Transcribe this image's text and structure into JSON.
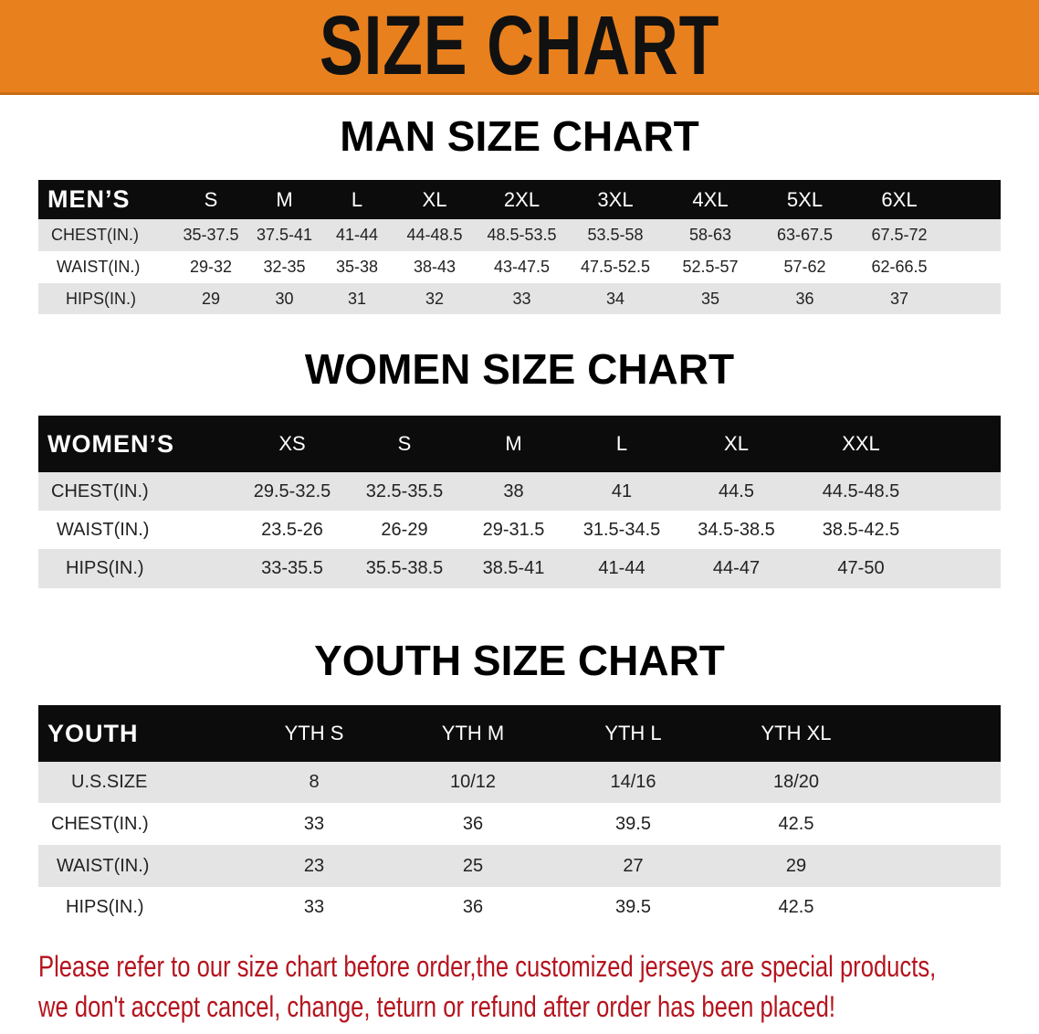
{
  "banner": {
    "title": "SIZE CHART",
    "color": "#e8801d"
  },
  "men": {
    "title": "MAN SIZE CHART",
    "header": "MEN’S",
    "sizes": [
      "S",
      "M",
      "L",
      "XL",
      "2XL",
      "3XL",
      "4XL",
      "5XL",
      "6XL"
    ],
    "rows": [
      {
        "label": "CHEST(IN.)",
        "values": [
          "35-37.5",
          "37.5-41",
          "41-44",
          "44-48.5",
          "48.5-53.5",
          "53.5-58",
          "58-63",
          "63-67.5",
          "67.5-72"
        ]
      },
      {
        "label": "WAIST(IN.)",
        "values": [
          "29-32",
          "32-35",
          "35-38",
          "38-43",
          "43-47.5",
          "47.5-52.5",
          "52.5-57",
          "57-62",
          "62-66.5"
        ]
      },
      {
        "label": "HIPS(IN.)",
        "values": [
          "29",
          "30",
          "31",
          "32",
          "33",
          "34",
          "35",
          "36",
          "37"
        ]
      }
    ]
  },
  "women": {
    "title": "WOMEN SIZE CHART",
    "header": "WOMEN’S",
    "sizes": [
      "XS",
      "S",
      "M",
      "L",
      "XL",
      "XXL"
    ],
    "rows": [
      {
        "label": "CHEST(IN.)",
        "values": [
          "29.5-32.5",
          "32.5-35.5",
          "38",
          "41",
          "44.5",
          "44.5-48.5"
        ]
      },
      {
        "label": "WAIST(IN.)",
        "values": [
          "23.5-26",
          "26-29",
          "29-31.5",
          "31.5-34.5",
          "34.5-38.5",
          "38.5-42.5"
        ]
      },
      {
        "label": "HIPS(IN.)",
        "values": [
          "33-35.5",
          "35.5-38.5",
          "38.5-41",
          "41-44",
          "44-47",
          "47-50"
        ]
      }
    ]
  },
  "youth": {
    "title": "YOUTH SIZE CHART",
    "header": "YOUTH",
    "sizes": [
      "YTH S",
      "YTH M",
      "YTH L",
      "YTH XL"
    ],
    "rows": [
      {
        "label": "U.S.SIZE",
        "values": [
          "8",
          "10/12",
          "14/16",
          "18/20"
        ]
      },
      {
        "label": "CHEST(IN.)",
        "values": [
          "33",
          "36",
          "39.5",
          "42.5"
        ]
      },
      {
        "label": "WAIST(IN.)",
        "values": [
          "23",
          "25",
          "27",
          "29"
        ]
      },
      {
        "label": "HIPS(IN.)",
        "values": [
          "33",
          "36",
          "39.5",
          "42.5"
        ]
      }
    ]
  },
  "note": {
    "line1": "Please refer to our size chart before order,the customized jerseys are special products,",
    "line2": "we don't accept cancel, change, teturn or refund after order has been placed!",
    "color": "#b4141e"
  }
}
